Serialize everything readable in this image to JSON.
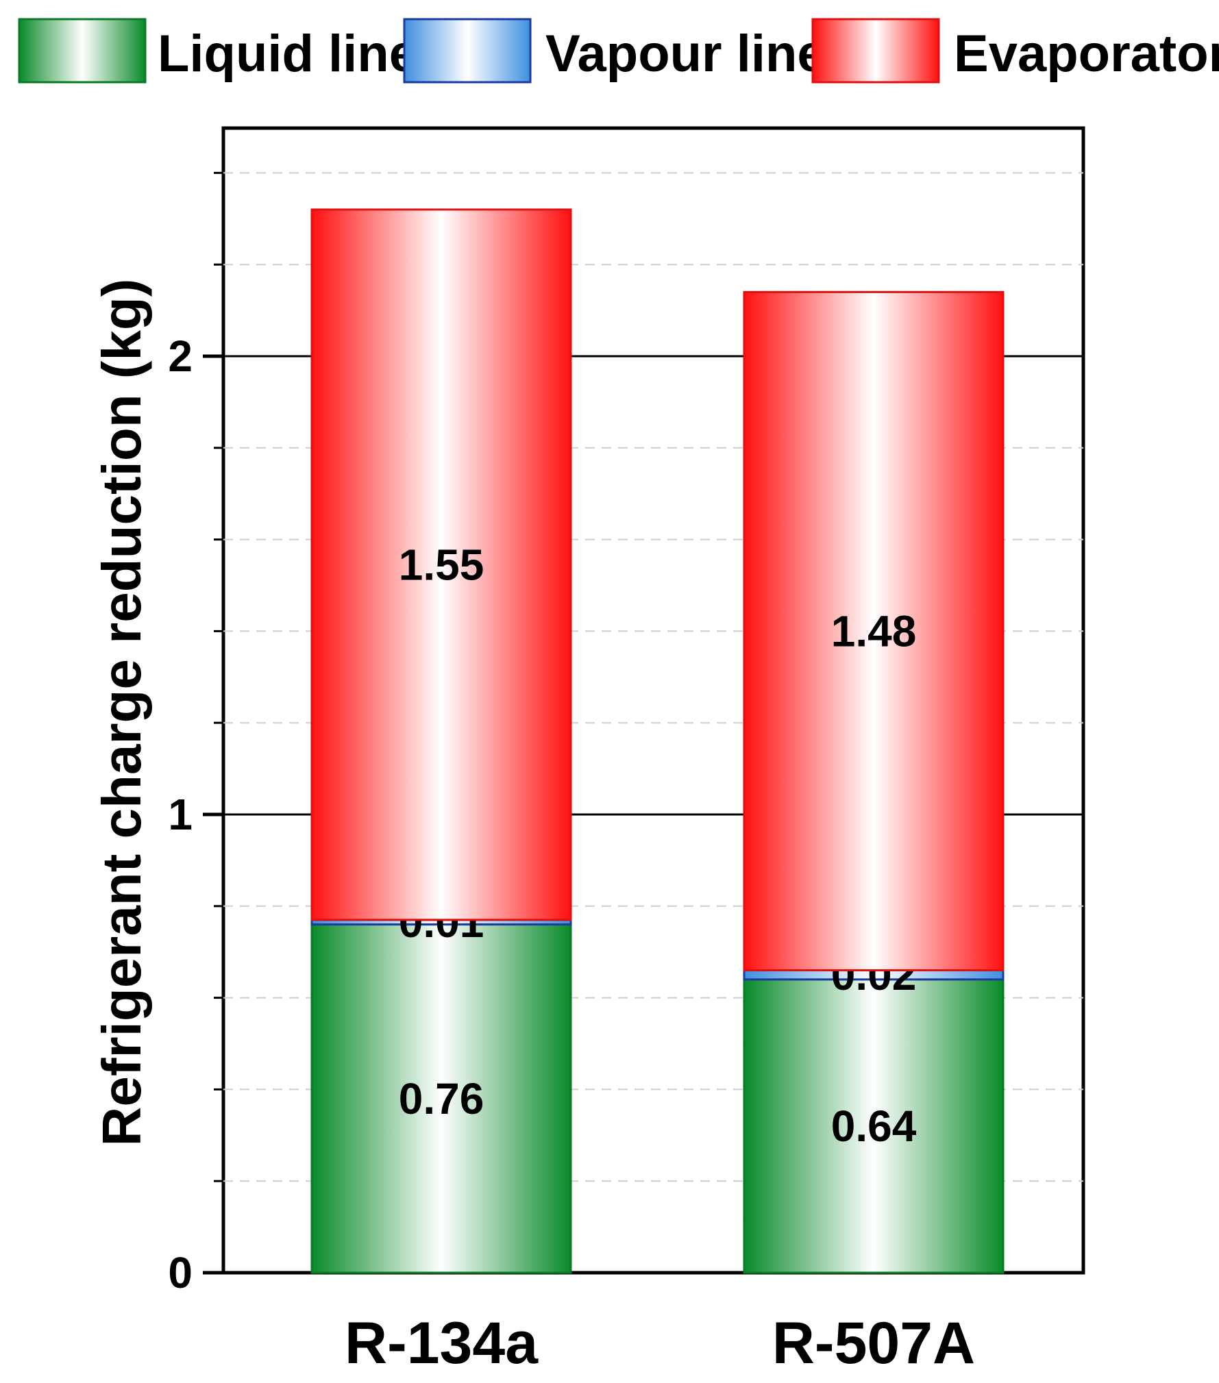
{
  "chart_data": {
    "type": "bar",
    "stacked": true,
    "categories": [
      "R-134a",
      "R-507A"
    ],
    "series": [
      {
        "name": "Liquid line",
        "values": [
          0.76,
          0.64
        ],
        "color": "#0a8a2a"
      },
      {
        "name": "Vapour line",
        "values": [
          0.01,
          0.02
        ],
        "color": "#3f8fe0"
      },
      {
        "name": "Evaporator",
        "values": [
          1.55,
          1.48
        ],
        "color": "#ff1010"
      }
    ],
    "ylabel": "Refrigerant charge reduction (kg)",
    "ylim": [
      0,
      2.4
    ],
    "yticks": [
      "0",
      "1",
      "2"
    ],
    "grid": true,
    "legend_position": "top"
  }
}
